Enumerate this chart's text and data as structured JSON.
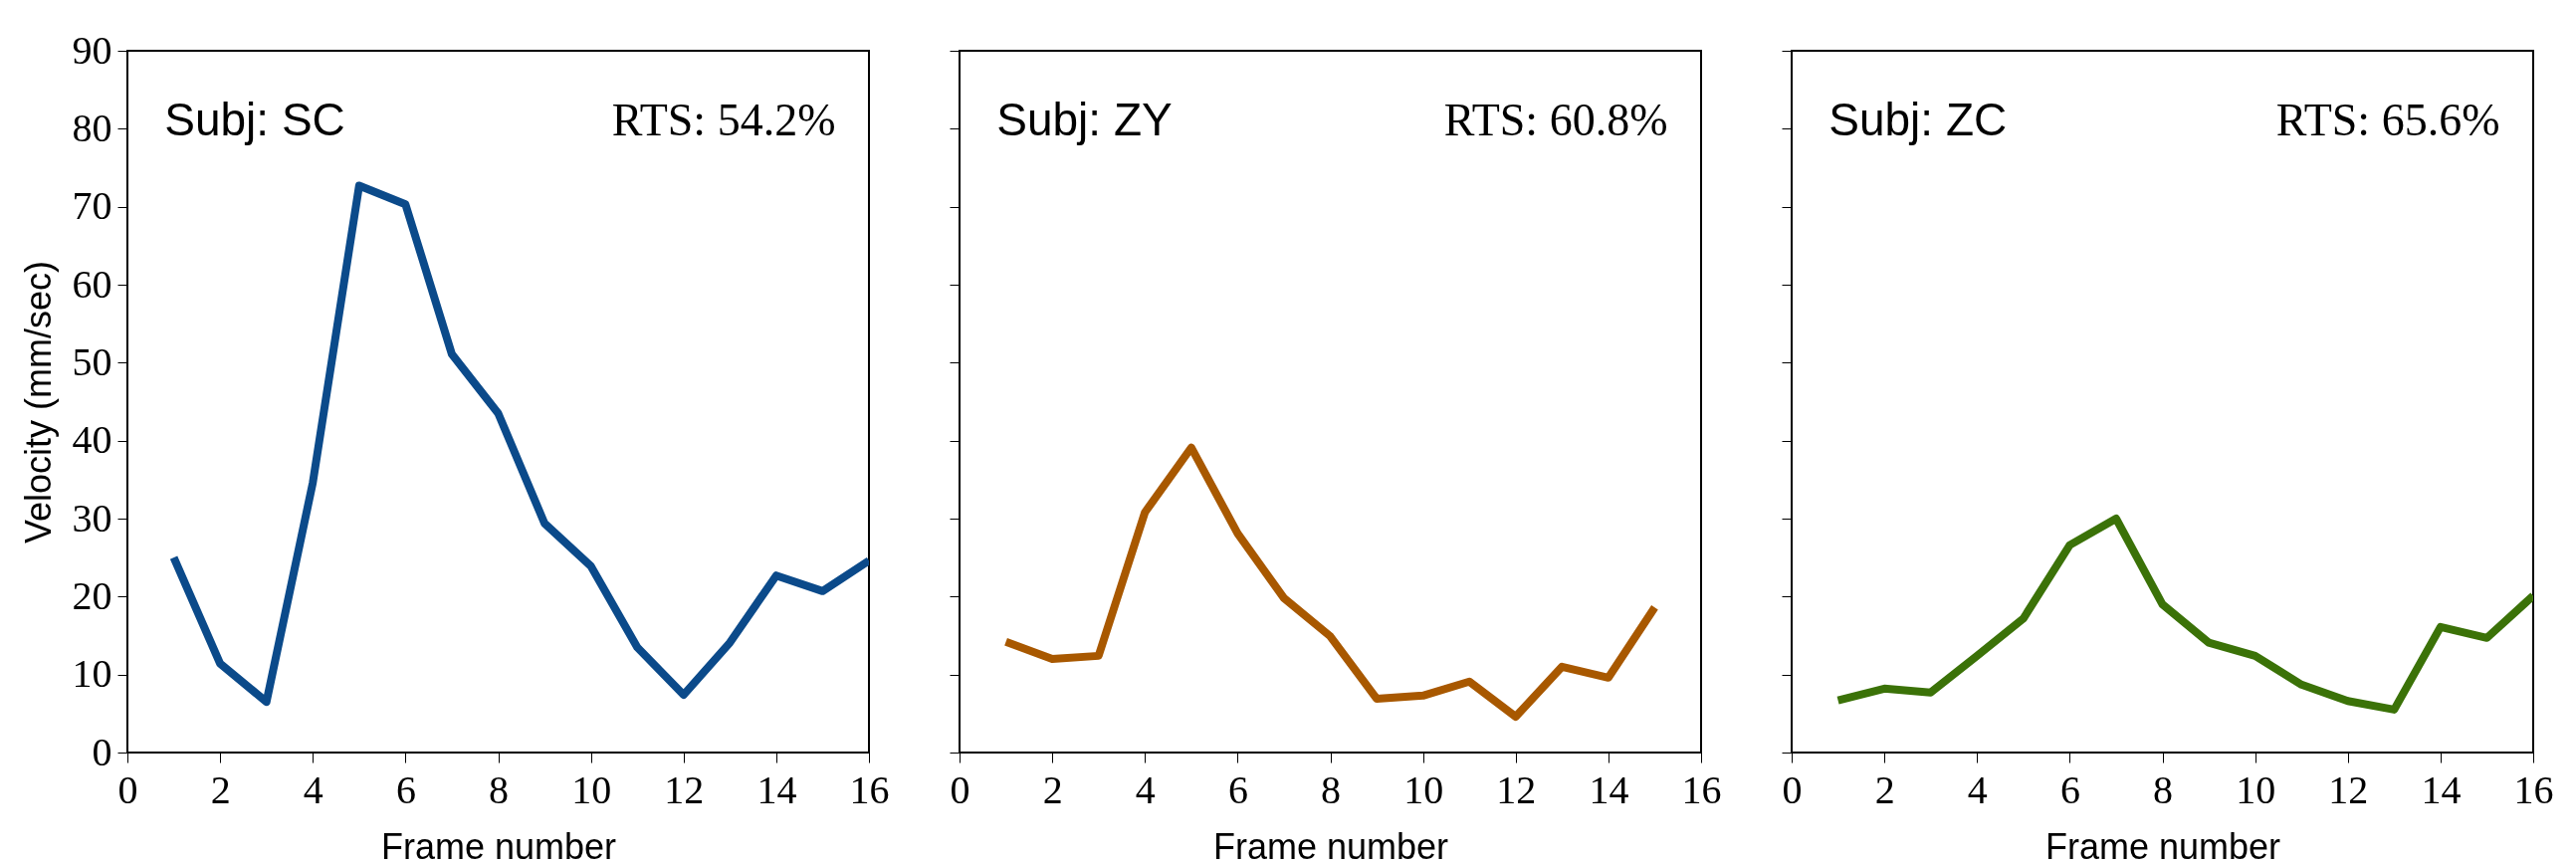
{
  "chart_data": [
    {
      "type": "line",
      "x": [
        1,
        2,
        3,
        4,
        5,
        6,
        7,
        8,
        9,
        10,
        11,
        12,
        13,
        14,
        15,
        16
      ],
      "values": [
        25.0,
        11.4,
        6.5,
        34.6,
        72.7,
        70.3,
        51.1,
        43.5,
        29.4,
        23.9,
        13.5,
        7.4,
        14.1,
        22.7,
        20.7,
        24.6
      ],
      "color": "#0b4a8a",
      "xlim": [
        0,
        16
      ],
      "xticks": [
        0,
        2,
        4,
        6,
        8,
        10,
        12,
        14,
        16
      ],
      "ylim": [
        0,
        90
      ],
      "yticks": [
        0,
        10,
        20,
        30,
        40,
        50,
        60,
        70,
        80,
        90
      ],
      "xlabel": "Frame number",
      "ylabel": "Velocity (mm/sec)",
      "annotations": [
        "Subj: SC",
        "RTS: 54.2%"
      ],
      "grid": false
    },
    {
      "type": "line",
      "x": [
        1,
        2,
        3,
        4,
        5,
        6,
        7,
        8,
        9,
        10,
        11,
        12,
        13,
        14,
        15
      ],
      "values": [
        14.2,
        12.0,
        12.4,
        30.8,
        39.1,
        28.1,
        19.8,
        14.9,
        6.9,
        7.3,
        9.1,
        4.6,
        11.0,
        9.6,
        18.6
      ],
      "color": "#a85800",
      "xlim": [
        0,
        16
      ],
      "xticks": [
        0,
        2,
        4,
        6,
        8,
        10,
        12,
        14,
        16
      ],
      "ylim": [
        0,
        90
      ],
      "yticks": [
        0,
        10,
        20,
        30,
        40,
        50,
        60,
        70,
        80,
        90
      ],
      "xlabel": "Frame number",
      "annotations": [
        "Subj: ZY",
        "RTS: 60.8%"
      ],
      "grid": false,
      "tick_labels": "x"
    },
    {
      "type": "line",
      "x": [
        1,
        2,
        3,
        4,
        5,
        6,
        7,
        8,
        9,
        10,
        11,
        12,
        13,
        14,
        15,
        16
      ],
      "values": [
        6.7,
        8.2,
        7.7,
        12.4,
        17.2,
        26.6,
        30.0,
        19.0,
        14.1,
        12.4,
        8.7,
        6.6,
        5.5,
        16.1,
        14.7,
        20.1
      ],
      "color": "#3b7208",
      "xlim": [
        0,
        16
      ],
      "xticks": [
        0,
        2,
        4,
        6,
        8,
        10,
        12,
        14,
        16
      ],
      "ylim": [
        0,
        90
      ],
      "yticks": [
        0,
        10,
        20,
        30,
        40,
        50,
        60,
        70,
        80,
        90
      ],
      "xlabel": "Frame number",
      "annotations": [
        "Subj: ZC",
        "RTS: 65.6%"
      ],
      "grid": false,
      "tick_labels": "x"
    }
  ]
}
